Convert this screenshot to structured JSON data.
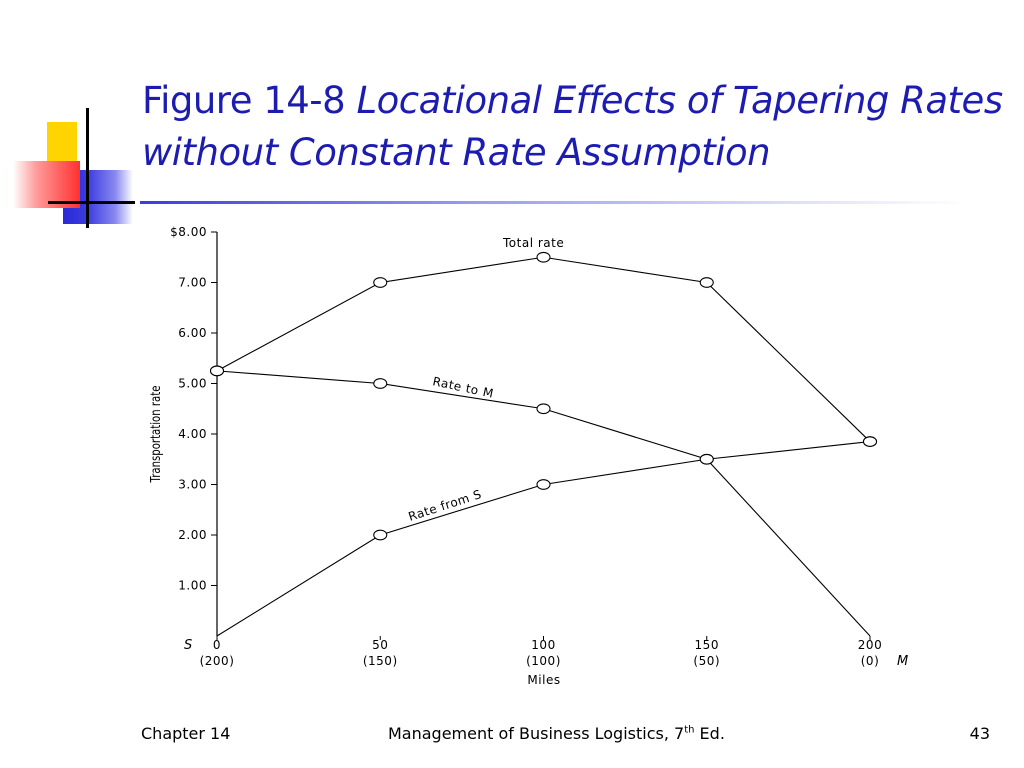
{
  "slide": {
    "title_prefix": "Figure 14-8",
    "title_italic": "Locational Effects of Tapering Rates without Constant Rate Assumption"
  },
  "footer": {
    "chapter": "Chapter 14",
    "book_title": "Management of Business Logistics, 7",
    "book_sup": "th",
    "book_suffix": " Ed.",
    "page_number": "43"
  },
  "chart_data": {
    "type": "line",
    "xlabel": "Miles",
    "ylabel": "Transportation rate",
    "xlim": [
      0,
      200
    ],
    "ylim": [
      0,
      8
    ],
    "x_ticks": [
      0,
      50,
      100,
      150,
      200
    ],
    "x_tick_labels": [
      "0",
      "50",
      "100",
      "150",
      "200"
    ],
    "x_tick_labels_reverse": [
      "(200)",
      "(150)",
      "(100)",
      "(50)",
      "(0)"
    ],
    "y_ticks": [
      1,
      2,
      3,
      4,
      5,
      6,
      7,
      8
    ],
    "y_tick_labels": [
      "1.00",
      "2.00",
      "3.00",
      "4.00",
      "5.00",
      "6.00",
      "7.00",
      "$8.00"
    ],
    "origin_label": "S",
    "end_label": "M",
    "grid": false,
    "series": [
      {
        "name": "Total rate",
        "x": [
          0,
          50,
          100,
          150,
          200
        ],
        "values": [
          5.25,
          7.0,
          7.5,
          7.0,
          3.85
        ]
      },
      {
        "name": "Rate to M",
        "x": [
          0,
          50,
          100,
          150,
          200
        ],
        "values": [
          5.25,
          5.0,
          4.5,
          3.5,
          0
        ]
      },
      {
        "name": "Rate from S",
        "x": [
          0,
          50,
          100,
          150,
          200
        ],
        "values": [
          0,
          2.0,
          3.0,
          3.5,
          3.85
        ]
      }
    ]
  }
}
